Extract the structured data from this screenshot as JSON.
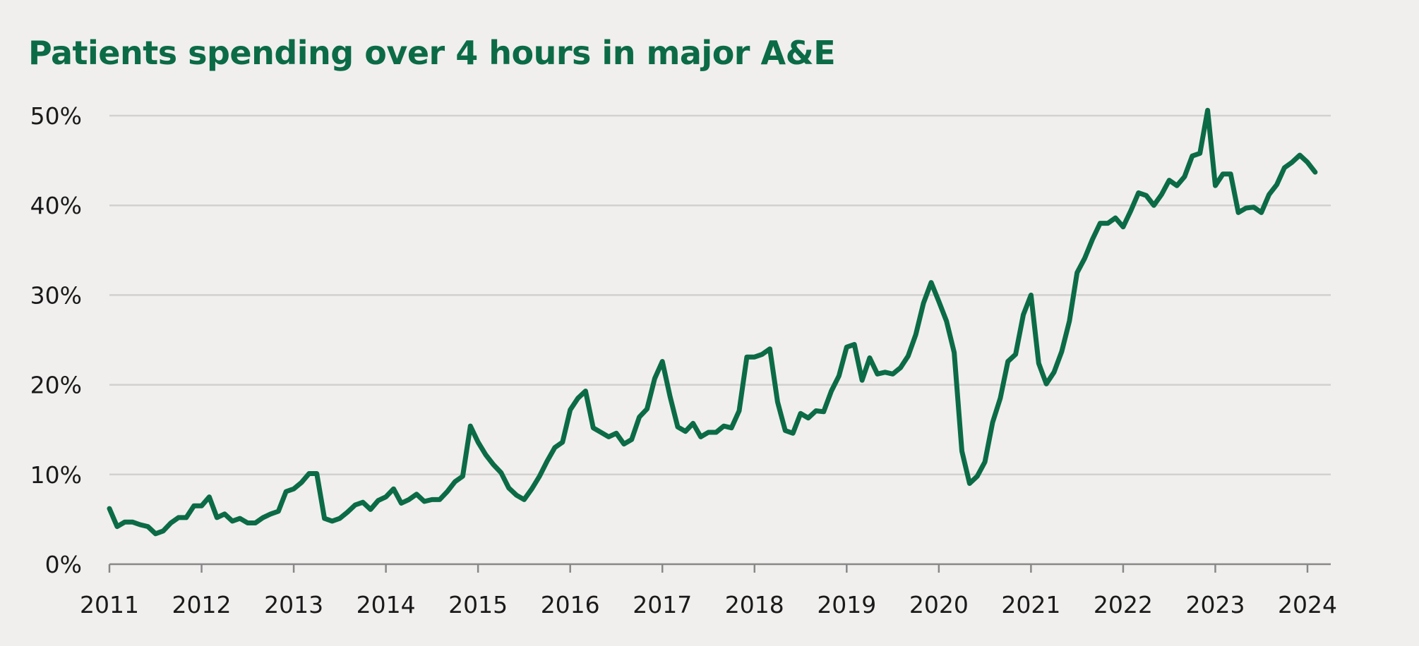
{
  "chart_data": {
    "type": "line",
    "title": "Patients spending over 4 hours in major A&E",
    "xlabel": "",
    "ylabel": "",
    "x_ticks": [
      "2011",
      "2012",
      "2013",
      "2014",
      "2015",
      "2016",
      "2017",
      "2018",
      "2019",
      "2020",
      "2021",
      "2022",
      "2023",
      "2024"
    ],
    "y_ticks": [
      {
        "value": 0,
        "label": "0%"
      },
      {
        "value": 10,
        "label": "10%"
      },
      {
        "value": 20,
        "label": "20%"
      },
      {
        "value": 30,
        "label": "30%"
      },
      {
        "value": 40,
        "label": "40%"
      },
      {
        "value": 50,
        "label": "50%"
      }
    ],
    "xlim": [
      2011,
      2024.25
    ],
    "ylim": [
      0,
      52
    ],
    "grid": true,
    "legend": "none",
    "color": "#0c6b47",
    "series": [
      {
        "x_start": 2011.0,
        "x_step": 0.08333333,
        "values": [
          6.2,
          4.2,
          4.7,
          4.7,
          4.4,
          4.2,
          3.4,
          3.7,
          4.6,
          5.2,
          5.2,
          6.5,
          6.5,
          7.5,
          5.2,
          5.6,
          4.8,
          5.1,
          4.6,
          4.6,
          5.2,
          5.6,
          5.9,
          8.1,
          8.4,
          9.1,
          10.1,
          10.1,
          5.1,
          4.8,
          5.1,
          5.8,
          6.6,
          6.9,
          6.1,
          7.1,
          7.5,
          8.4,
          6.8,
          7.2,
          7.8,
          7.0,
          7.2,
          7.2,
          8.1,
          9.2,
          9.8,
          15.4,
          13.6,
          12.2,
          11.1,
          10.2,
          8.5,
          7.7,
          7.2,
          8.4,
          9.8,
          11.5,
          13.0,
          13.6,
          17.2,
          18.5,
          19.3,
          15.2,
          14.7,
          14.2,
          14.6,
          13.4,
          13.9,
          16.4,
          17.3,
          20.7,
          22.6,
          18.7,
          15.3,
          14.8,
          15.7,
          14.2,
          14.7,
          14.7,
          15.4,
          15.2,
          17.1,
          23.1,
          23.1,
          23.4,
          24.0,
          18.1,
          14.9,
          14.6,
          16.8,
          16.3,
          17.1,
          17.0,
          19.3,
          21.0,
          24.2,
          24.5,
          20.5,
          23.0,
          21.2,
          21.4,
          21.2,
          21.9,
          23.2,
          25.6,
          29.1,
          31.4,
          29.3,
          27.1,
          23.6,
          12.6,
          9.0,
          9.8,
          11.4,
          15.8,
          18.5,
          22.6,
          23.4,
          27.8,
          30.0,
          22.4,
          20.1,
          21.4,
          23.7,
          27.1,
          32.5,
          34.1,
          36.2,
          38.0,
          38.0,
          38.6,
          37.6,
          39.4,
          41.4,
          41.1,
          40.0,
          41.2,
          42.8,
          42.2,
          43.2,
          45.5,
          45.8,
          50.6,
          42.2,
          43.5,
          43.5,
          39.2,
          39.7,
          39.8,
          39.2,
          41.2,
          42.3,
          44.2,
          44.8,
          45.6,
          44.8,
          43.7
        ]
      }
    ]
  }
}
